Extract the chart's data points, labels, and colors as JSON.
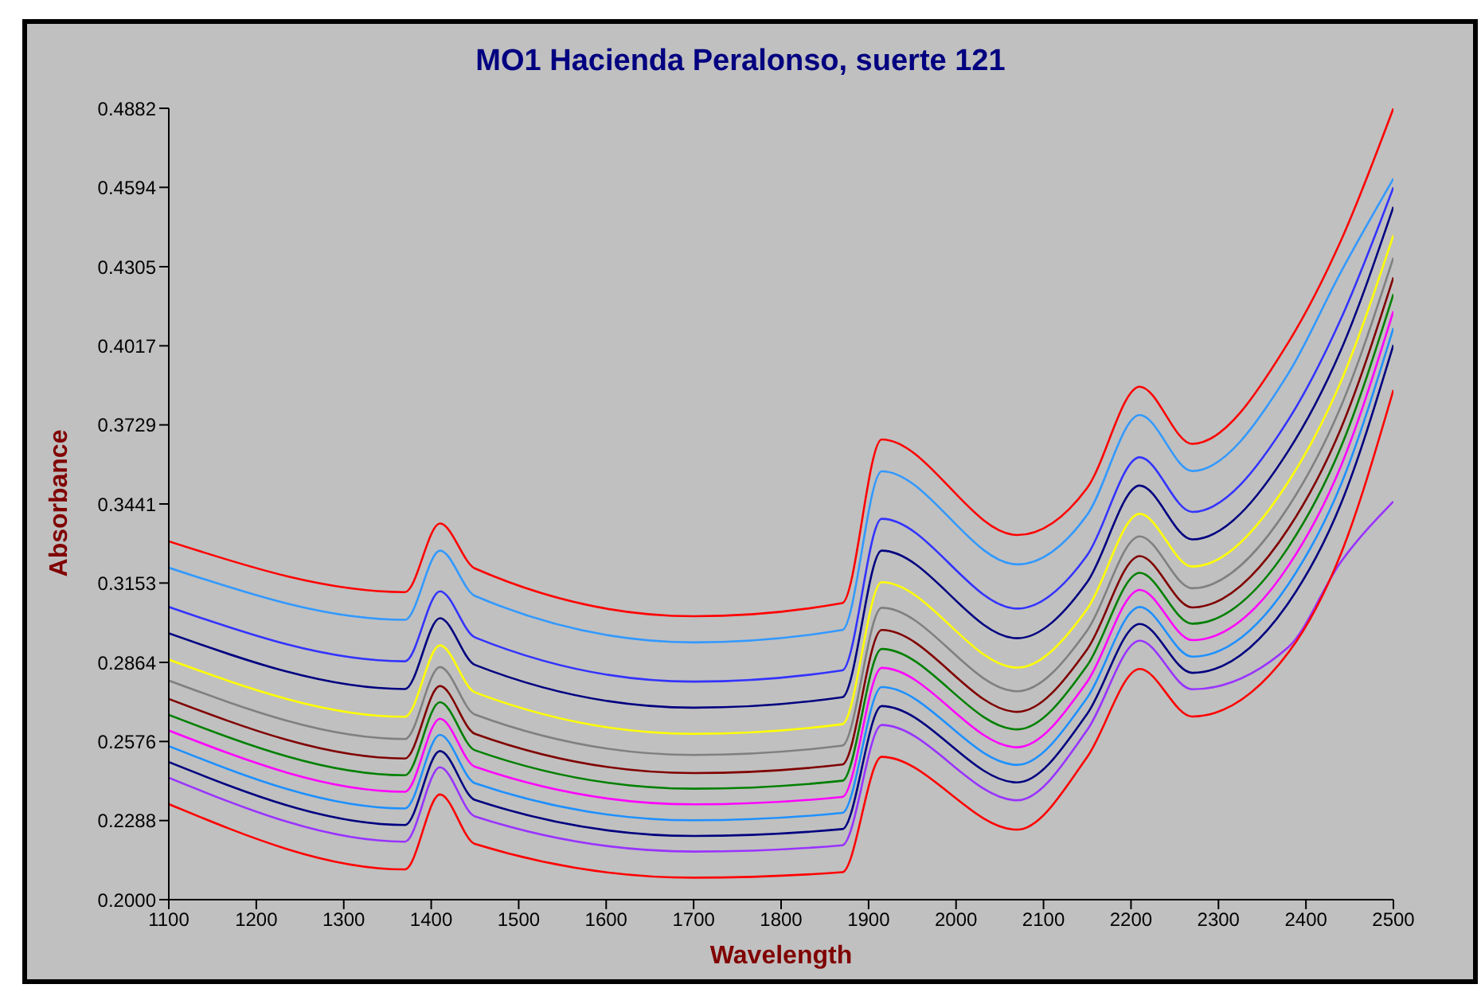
{
  "chart_data": {
    "type": "line",
    "title": "MO1 Hacienda Peralonso, suerte 121",
    "xlabel": "Wavelength",
    "ylabel": "Absorbance",
    "x": [
      1100,
      1370,
      1410,
      1450,
      1700,
      1870,
      1915,
      2070,
      2150,
      2210,
      2270,
      2380,
      2440,
      2500
    ],
    "xlim": [
      1100,
      2500
    ],
    "xticks": [
      1100,
      1200,
      1300,
      1400,
      1500,
      1600,
      1700,
      1800,
      1900,
      2000,
      2100,
      2200,
      2300,
      2400,
      2500
    ],
    "ylim": [
      0.2,
      0.4882
    ],
    "yticks": [
      {
        "value": 0.2,
        "label": "0.2000"
      },
      {
        "value": 0.2288,
        "label": "0.2288"
      },
      {
        "value": 0.2576,
        "label": "0.2576"
      },
      {
        "value": 0.2864,
        "label": "0.2864"
      },
      {
        "value": 0.3153,
        "label": "0.3153"
      },
      {
        "value": 0.3441,
        "label": "0.3441"
      },
      {
        "value": 0.3729,
        "label": "0.3729"
      },
      {
        "value": 0.4017,
        "label": "0.4017"
      },
      {
        "value": 0.4305,
        "label": "0.4305"
      },
      {
        "value": 0.4594,
        "label": "0.4594"
      },
      {
        "value": 0.4882,
        "label": "0.4882"
      }
    ],
    "series": [
      {
        "color": "#ff0000",
        "values": [
          0.3305,
          0.312,
          0.337,
          0.3206,
          0.3032,
          0.308,
          0.3676,
          0.3328,
          0.35,
          0.3868,
          0.366,
          0.403,
          0.44,
          0.4882
        ]
      },
      {
        "color": "#3399ff",
        "values": [
          0.3209,
          0.3019,
          0.3271,
          0.3106,
          0.2937,
          0.2982,
          0.356,
          0.3221,
          0.3402,
          0.3765,
          0.3561,
          0.3917,
          0.4286,
          0.4626
        ]
      },
      {
        "color": "#3333ff",
        "values": [
          0.3066,
          0.2868,
          0.3123,
          0.2955,
          0.2794,
          0.2835,
          0.3387,
          0.306,
          0.3255,
          0.3611,
          0.3412,
          0.3748,
          0.4115,
          0.4594
        ]
      },
      {
        "color": "#000080",
        "values": [
          0.297,
          0.2767,
          0.3025,
          0.2855,
          0.2699,
          0.2737,
          0.3271,
          0.2952,
          0.3157,
          0.3508,
          0.3312,
          0.3635,
          0.4001,
          0.4523
        ]
      },
      {
        "color": "#ffff00",
        "values": [
          0.2874,
          0.2666,
          0.2926,
          0.2755,
          0.2604,
          0.2639,
          0.3156,
          0.2845,
          0.3059,
          0.3405,
          0.3213,
          0.3522,
          0.3887,
          0.442
        ]
      },
      {
        "color": "#808080",
        "values": [
          0.2798,
          0.2585,
          0.2847,
          0.2674,
          0.2527,
          0.2561,
          0.3063,
          0.2759,
          0.2981,
          0.3323,
          0.3134,
          0.3431,
          0.3796,
          0.4338
        ]
      },
      {
        "color": "#800000",
        "values": [
          0.2731,
          0.2514,
          0.2778,
          0.2604,
          0.2461,
          0.2492,
          0.2982,
          0.2684,
          0.2912,
          0.3251,
          0.3064,
          0.3352,
          0.3716,
          0.4266
        ]
      },
      {
        "color": "#008000",
        "values": [
          0.2673,
          0.2453,
          0.2719,
          0.2544,
          0.2404,
          0.2433,
          0.2913,
          0.262,
          0.2853,
          0.319,
          0.3005,
          0.3284,
          0.3648,
          0.4205
        ]
      },
      {
        "color": "#ff00ff",
        "values": [
          0.2616,
          0.2393,
          0.2659,
          0.2484,
          0.2347,
          0.2374,
          0.2844,
          0.2555,
          0.2794,
          0.3128,
          0.2945,
          0.3216,
          0.3579,
          0.4143
        ]
      },
      {
        "color": "#1e90ff",
        "values": [
          0.2559,
          0.2332,
          0.26,
          0.2424,
          0.2289,
          0.2316,
          0.2774,
          0.2491,
          0.2736,
          0.3066,
          0.2885,
          0.3149,
          0.3511,
          0.4082
        ]
      },
      {
        "color": "#000080",
        "values": [
          0.2501,
          0.2272,
          0.2541,
          0.2363,
          0.2232,
          0.2257,
          0.2705,
          0.2427,
          0.2677,
          0.3004,
          0.2826,
          0.3081,
          0.3442,
          0.402
        ]
      },
      {
        "color": "#9933ff",
        "values": [
          0.2444,
          0.2211,
          0.2482,
          0.2303,
          0.2175,
          0.2198,
          0.2636,
          0.2362,
          0.2618,
          0.2943,
          0.2766,
          0.292,
          0.323,
          0.345
        ]
      },
      {
        "color": "#ff0000",
        "values": [
          0.2348,
          0.211,
          0.2383,
          0.2203,
          0.208,
          0.21,
          0.252,
          0.2255,
          0.252,
          0.284,
          0.2667,
          0.29,
          0.326,
          0.3856
        ]
      }
    ]
  }
}
